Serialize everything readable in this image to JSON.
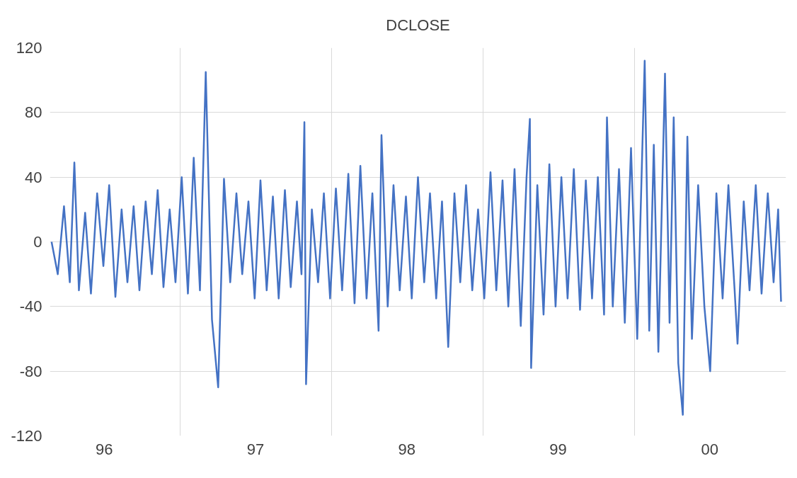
{
  "chart_data": {
    "type": "line",
    "title": "DCLOSE",
    "xlim": [
      "1996-02-21",
      "2001-01-01"
    ],
    "xticks": [
      {
        "value": "1996-07-01",
        "label": "96"
      },
      {
        "value": "1997-01-01",
        "label": null
      },
      {
        "value": "1997-07-01",
        "label": "97"
      },
      {
        "value": "1998-01-01",
        "label": null
      },
      {
        "value": "1998-07-01",
        "label": "98"
      },
      {
        "value": "1999-01-01",
        "label": null
      },
      {
        "value": "1999-07-01",
        "label": "99"
      },
      {
        "value": "2000-01-01",
        "label": null
      },
      {
        "value": "2000-07-01",
        "label": "00"
      }
    ],
    "ylim": [
      -120,
      120
    ],
    "yticks": [
      -120,
      -80,
      -40,
      0,
      40,
      80,
      120
    ],
    "grid": true,
    "marker": "none",
    "line_style": "solid",
    "series": [
      {
        "color": "#4472c4",
        "x": [
          "1996-02-25",
          "1996-03-11",
          "1996-03-26",
          "1996-04-09",
          "1996-04-20",
          "1996-05-01",
          "1996-05-16",
          "1996-05-30",
          "1996-06-14",
          "1996-06-29",
          "1996-07-13",
          "1996-07-28",
          "1996-08-12",
          "1996-08-26",
          "1996-09-10",
          "1996-09-24",
          "1996-10-09",
          "1996-10-24",
          "1996-11-07",
          "1996-11-21",
          "1996-12-06",
          "1996-12-20",
          "1997-01-04",
          "1997-01-19",
          "1997-02-02",
          "1997-02-17",
          "1997-03-03",
          "1997-03-18",
          "1997-04-02",
          "1997-04-16",
          "1997-05-01",
          "1997-05-16",
          "1997-05-30",
          "1997-06-14",
          "1997-06-29",
          "1997-07-13",
          "1997-07-28",
          "1997-08-12",
          "1997-08-26",
          "1997-09-10",
          "1997-09-24",
          "1997-10-09",
          "1997-10-20",
          "1997-10-27",
          "1997-10-31",
          "1997-11-14",
          "1997-11-29",
          "1997-12-13",
          "1997-12-28",
          "1998-01-11",
          "1998-01-26",
          "1998-02-10",
          "1998-02-25",
          "1998-03-11",
          "1998-03-26",
          "1998-04-09",
          "1998-04-24",
          "1998-05-01",
          "1998-05-16",
          "1998-05-30",
          "1998-06-14",
          "1998-06-29",
          "1998-07-13",
          "1998-07-28",
          "1998-08-12",
          "1998-08-26",
          "1998-09-10",
          "1998-09-24",
          "1998-10-09",
          "1998-10-24",
          "1998-11-07",
          "1998-11-21",
          "1998-12-06",
          "1998-12-20",
          "1999-01-04",
          "1999-01-19",
          "1999-02-02",
          "1999-02-17",
          "1999-03-03",
          "1999-03-18",
          "1999-04-02",
          "1999-04-16",
          "1999-04-24",
          "1999-04-27",
          "1999-05-12",
          "1999-05-27",
          "1999-06-10",
          "1999-06-25",
          "1999-07-09",
          "1999-07-24",
          "1999-08-08",
          "1999-08-23",
          "1999-09-06",
          "1999-09-21",
          "1999-10-05",
          "1999-10-20",
          "1999-10-27",
          "1999-11-10",
          "1999-11-25",
          "1999-12-09",
          "1999-12-24",
          "2000-01-08",
          "2000-01-26",
          "2000-02-06",
          "2000-02-17",
          "2000-02-28",
          "2000-03-15",
          "2000-03-26",
          "2000-04-05",
          "2000-04-16",
          "2000-04-27",
          "2000-05-08",
          "2000-05-19",
          "2000-06-03",
          "2000-06-18",
          "2000-07-02",
          "2000-07-17",
          "2000-08-01",
          "2000-08-15",
          "2000-08-30",
          "2000-09-06",
          "2000-09-21",
          "2000-10-05",
          "2000-10-20",
          "2000-11-03",
          "2000-11-18",
          "2000-12-02",
          "2000-12-13",
          "2000-12-20"
        ],
        "values": [
          0,
          -20,
          22,
          -25,
          49,
          -30,
          18,
          -32,
          30,
          -15,
          35,
          -34,
          20,
          -25,
          22,
          -30,
          25,
          -20,
          32,
          -28,
          20,
          -25,
          40,
          -32,
          52,
          -30,
          105,
          -48,
          -90,
          39,
          -25,
          30,
          -20,
          25,
          -35,
          38,
          -30,
          28,
          -35,
          32,
          -28,
          25,
          -20,
          74,
          -88,
          20,
          -25,
          30,
          -35,
          33,
          -30,
          42,
          -38,
          47,
          -35,
          30,
          -55,
          66,
          -40,
          35,
          -30,
          28,
          -35,
          40,
          -25,
          30,
          -35,
          25,
          -65,
          30,
          -25,
          35,
          -30,
          20,
          -35,
          43,
          -30,
          38,
          -40,
          45,
          -52,
          40,
          76,
          -78,
          35,
          -45,
          48,
          -40,
          40,
          -35,
          45,
          -42,
          38,
          -35,
          40,
          -45,
          77,
          -40,
          45,
          -50,
          58,
          -60,
          112,
          -55,
          60,
          -68,
          104,
          -50,
          77,
          -75,
          -107,
          65,
          -60,
          35,
          -40,
          -80,
          30,
          -35,
          35,
          -30,
          -63,
          25,
          -30,
          35,
          -32,
          30,
          -25,
          20,
          -37
        ]
      }
    ]
  }
}
